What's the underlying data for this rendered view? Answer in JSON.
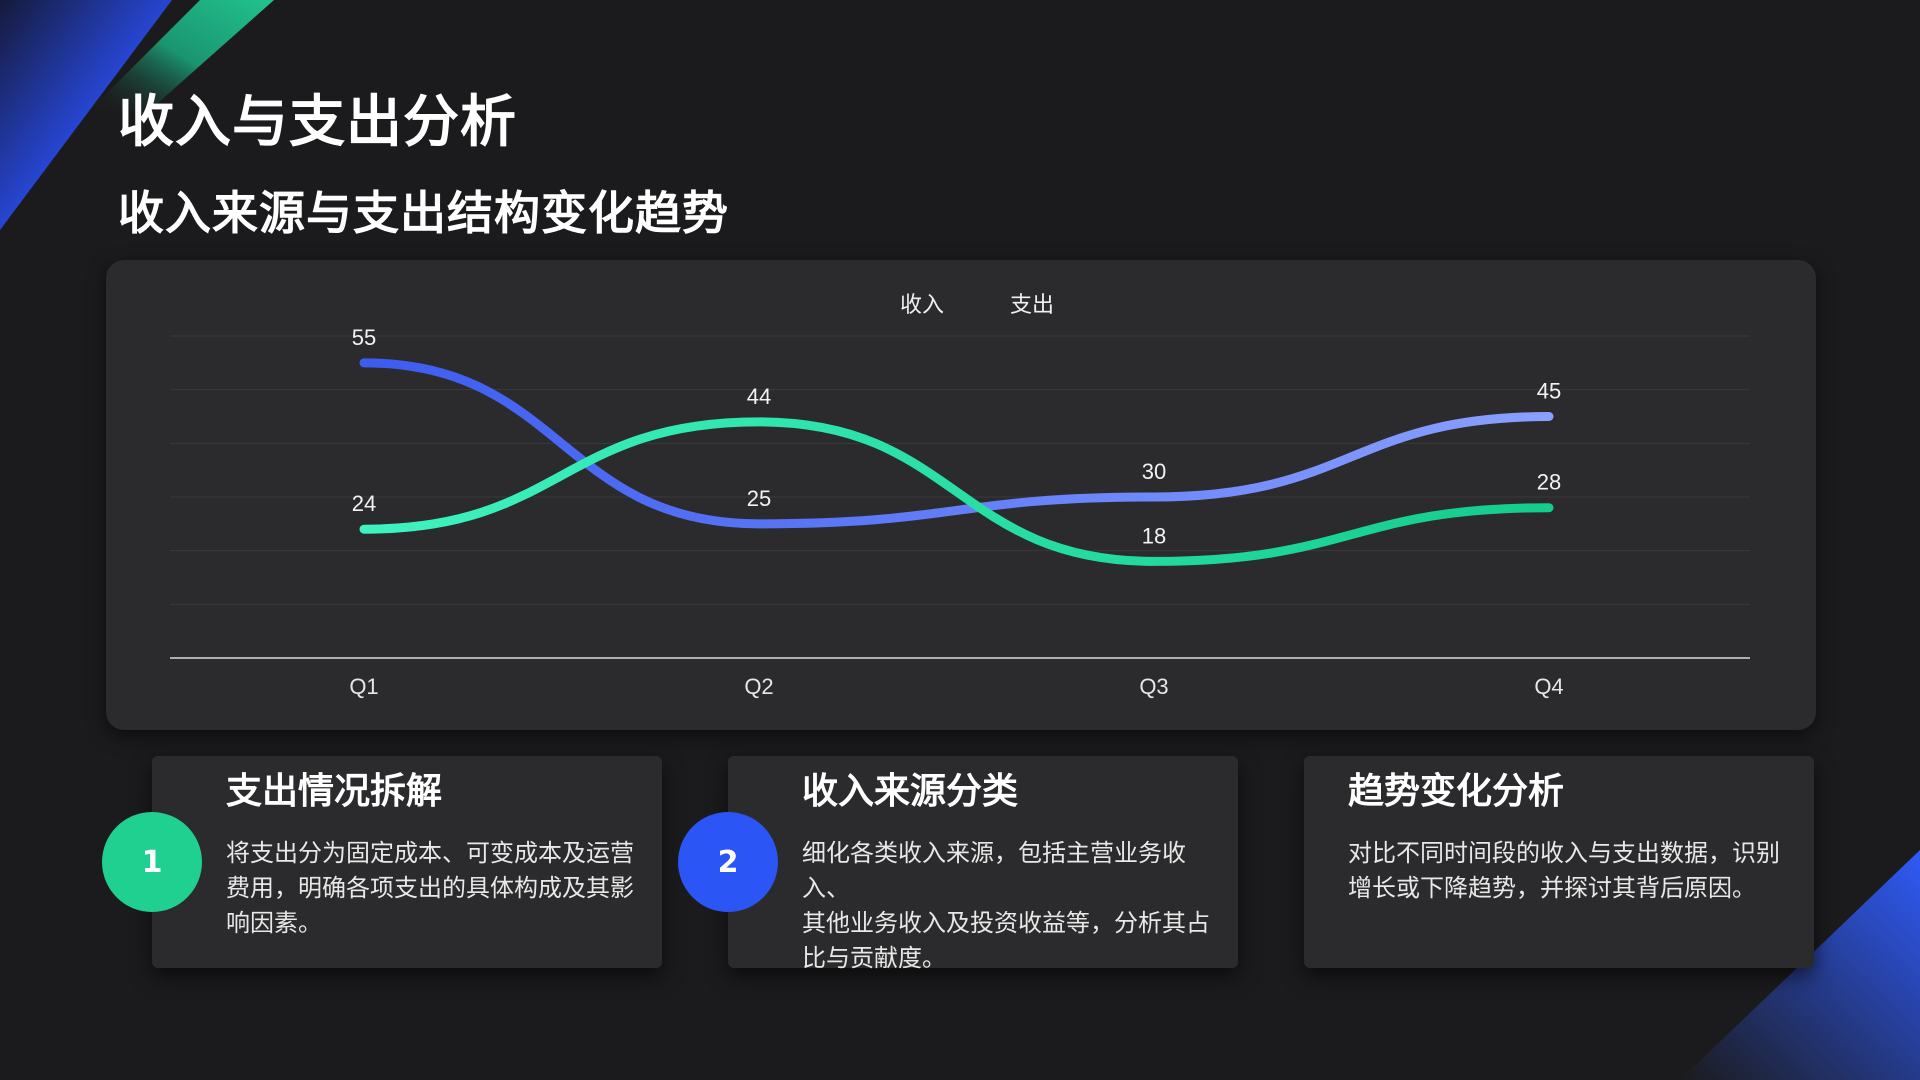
{
  "slide": {
    "title": "收入与支出分析",
    "subtitle": "收入来源与支出结构变化趋势"
  },
  "colors": {
    "income_start": "#3d5cf0",
    "income_end": "#8aa0ff",
    "expense_start": "#3ff2c0",
    "expense_end": "#14cc8c",
    "accent_blue": "#2c55f5",
    "accent_green": "#1fd091"
  },
  "chart_data": {
    "type": "line",
    "smooth": true,
    "categories": [
      "Q1",
      "Q2",
      "Q3",
      "Q4"
    ],
    "series": [
      {
        "name": "收入",
        "values": [
          55,
          25,
          30,
          45
        ]
      },
      {
        "name": "支出",
        "values": [
          24,
          44,
          18,
          28
        ]
      }
    ],
    "ylim": [
      0,
      60
    ],
    "grid": true,
    "legend": "top-center",
    "data_labels": true
  },
  "cards": [
    {
      "number": "1",
      "title": "支出情况拆解",
      "lines": [
        "将支出分为固定成本、可变成本及运营",
        "费用，明确各项支出的具体构成及其影",
        "响因素。"
      ]
    },
    {
      "number": "2",
      "title": "收入来源分类",
      "lines": [
        "细化各类收入来源，包括主营业务收入、",
        "其他业务收入及投资收益等，分析其占",
        "比与贡献度。"
      ]
    },
    {
      "title": "趋势变化分析",
      "lines": [
        "对比不同时间段的收入与支出数据，识别",
        "增长或下降趋势，并探讨其背后原因。"
      ]
    }
  ]
}
